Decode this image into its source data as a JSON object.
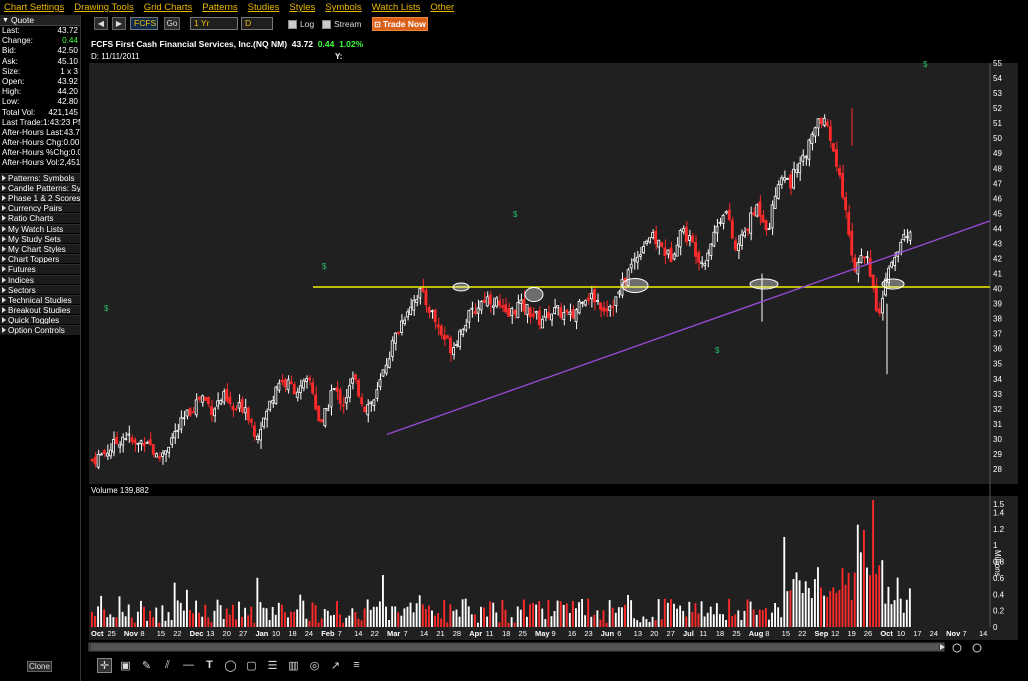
{
  "menu": [
    "Chart Settings",
    "Drawing Tools",
    "Grid Charts",
    "Patterns",
    "Studies",
    "Styles",
    "Symbols",
    "Watch Lists",
    "Other"
  ],
  "quote": {
    "header": "Quote",
    "rows": [
      {
        "label": "Last:",
        "value": "43.72",
        "positive": false
      },
      {
        "label": "Change:",
        "value": "0.44",
        "positive": true
      },
      {
        "label": "Bid:",
        "value": "42.50",
        "positive": false
      },
      {
        "label": "Ask:",
        "value": "45.10",
        "positive": false
      },
      {
        "label": "Size:",
        "value": "1 x 3",
        "positive": false
      },
      {
        "label": "Open:",
        "value": "43.92",
        "positive": false
      },
      {
        "label": "High:",
        "value": "44.20",
        "positive": false
      },
      {
        "label": "Low:",
        "value": "42.80",
        "positive": false
      },
      {
        "label": "Total Vol:",
        "value": "421,145",
        "positive": false
      },
      {
        "label": "Last Trade:",
        "value": "1:43:23 PM",
        "positive": false
      },
      {
        "label": "After-Hours Last:",
        "value": "43.72",
        "positive": false
      },
      {
        "label": "After-Hours Chg:",
        "value": "0.00",
        "positive": false
      },
      {
        "label": "After-Hours %Chg:",
        "value": "0.00",
        "positive": false
      },
      {
        "label": "After-Hours Vol:",
        "value": "2,451",
        "positive": false
      }
    ]
  },
  "panels": [
    "Patterns: Symbols",
    "Candle Patterns: Sy",
    "Phase 1 & 2 Scores",
    "Currency Pairs",
    "Ratio Charts",
    "My Watch Lists",
    "My Study Sets",
    "My Chart Styles",
    "Chart Toppers",
    "Futures",
    "Indices",
    "Sectors",
    "Technical Studies",
    "Breakout Studies",
    "Quick Toggles",
    "Option Controls"
  ],
  "clone_label": "Clone",
  "toolbar": {
    "symbol": "FCFS",
    "go_label": "Go",
    "period": "1 Yr",
    "interval": "D",
    "log_label": "Log",
    "stream_label": "Stream",
    "trade_label": "Trade Now"
  },
  "title": {
    "name": "FCFS First Cash Financial Services, Inc.(NQ NM)",
    "last": "43.72",
    "change": "0.44",
    "pct": "1.02%",
    "date": "D: 11/11/2011",
    "y_label": "Y:",
    "volume_label": "Volume 139,882",
    "millions_label": "Millions",
    "dividend_marker": "$"
  },
  "colors": {
    "up": "#ffffff",
    "down": "#ff2a2a",
    "hline": "#f0f000",
    "trendline": "#9a4ad8",
    "panel_bg": "#202020",
    "grid": "#3a3a3a"
  },
  "chart_data": {
    "type": "candlestick",
    "price_axis": {
      "min": 27,
      "max": 55,
      "ticks": [
        28,
        29,
        30,
        31,
        32,
        33,
        34,
        35,
        36,
        37,
        38,
        39,
        40,
        41,
        42,
        43,
        44,
        45,
        46,
        47,
        48,
        49,
        50,
        51,
        52,
        53,
        54,
        55
      ]
    },
    "volume_axis": {
      "min": 0,
      "max": 1.6,
      "ticks": [
        0,
        0.2,
        0.4,
        0.6,
        0.8,
        1,
        1.2,
        1.4
      ],
      "tick_labels": [
        "0",
        "0.2",
        "0.4",
        "0.6",
        "0.8",
        "1",
        "1.2",
        "1.4"
      ],
      "extra_label": "1.5"
    },
    "x_labels": [
      "Oct",
      "25",
      "Nov",
      "8",
      "15",
      "22",
      "Dec",
      "13",
      "20",
      "27",
      "Jan",
      "10",
      "18",
      "24",
      "Feb",
      "7",
      "14",
      "22",
      "Mar",
      "7",
      "14",
      "21",
      "28",
      "Apr",
      "11",
      "18",
      "25",
      "May",
      "9",
      "16",
      "23",
      "Jun",
      "6",
      "13",
      "20",
      "27",
      "Jul",
      "11",
      "18",
      "25",
      "Aug",
      "8",
      "15",
      "22",
      "Sep",
      "12",
      "19",
      "26",
      "Oct",
      "10",
      "17",
      "24",
      "Nov",
      "7",
      "14"
    ],
    "horizontal_line": 40.1,
    "price_path": [
      28.6,
      29.0,
      29.6,
      30.3,
      29.5,
      30.1,
      28.6,
      29.7,
      30.8,
      31.9,
      32.9,
      32.0,
      32.8,
      31.8,
      32.3,
      30.3,
      31.7,
      33.9,
      33.6,
      33.2,
      33.9,
      30.6,
      33.4,
      32.4,
      34.0,
      32.1,
      32.7,
      35.2,
      37.2,
      38.8,
      39.8,
      38.6,
      37.0,
      36.0,
      37.6,
      38.5,
      39.4,
      39.2,
      38.0,
      38.9,
      38.6,
      37.9,
      38.5,
      38.4,
      38.0,
      39.6,
      39.4,
      38.7,
      39.2,
      40.9,
      42.3,
      43.5,
      43.0,
      42.0,
      44.0,
      43.0,
      41.7,
      43.6,
      45.5,
      42.5,
      44.0,
      45.5,
      44.0,
      47.5,
      47.0,
      48.6,
      50.0,
      51.5,
      49.0,
      45.5,
      41.0,
      42.5,
      38.0,
      41.0,
      42.7,
      43.8
    ]
  }
}
